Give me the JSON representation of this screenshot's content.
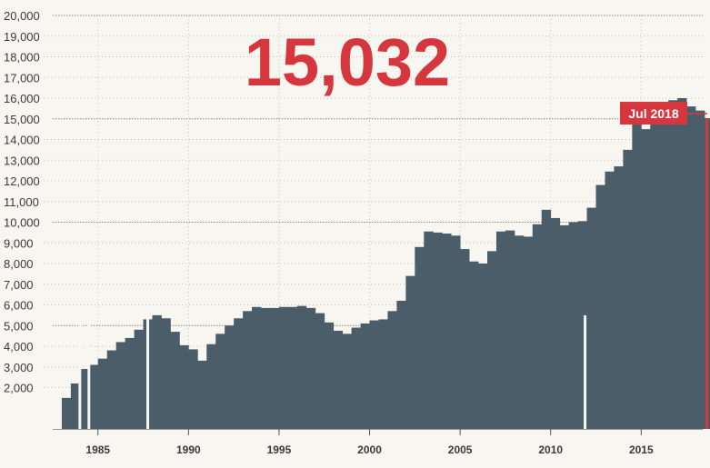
{
  "headline": "15,032",
  "colors": {
    "bar": "#4a5d69",
    "accent": "#d6373e",
    "grid": "#c8c2b8",
    "background": "#f8f6f1"
  },
  "chart_data": {
    "type": "bar",
    "title": "",
    "xlabel": "",
    "ylabel": "",
    "ylim": [
      0,
      20000
    ],
    "xlim": [
      1982,
      2018.7
    ],
    "y_ticks": [
      "2,000",
      "3,000",
      "4,000",
      "5,000",
      "6,000",
      "7,000",
      "8,000",
      "9,000",
      "10,000",
      "11,000",
      "12,000",
      "13,000",
      "14,000",
      "15,000",
      "16,000",
      "17,000",
      "18,000",
      "19,000",
      "20,000"
    ],
    "x_ticks": [
      "1985",
      "1990",
      "1995",
      "2000",
      "2005",
      "2010",
      "2015"
    ],
    "highlighted_gridlines": [
      5000,
      10000,
      15000,
      20000
    ],
    "annotation": {
      "label": "Jul 2018",
      "x": 2018.5,
      "value": 15032
    },
    "series": [
      {
        "points": [
          [
            1983.0,
            1500
          ],
          [
            1983.5,
            2200
          ],
          [
            1984.0,
            2900
          ],
          [
            1984.5,
            3100
          ],
          [
            1985.0,
            3400
          ],
          [
            1985.5,
            3800
          ],
          [
            1986.0,
            4200
          ],
          [
            1986.5,
            4400
          ],
          [
            1987.0,
            4800
          ],
          [
            1987.5,
            5300
          ],
          [
            1988.0,
            5500
          ],
          [
            1988.5,
            5350
          ],
          [
            1989.0,
            4700
          ],
          [
            1989.5,
            4050
          ],
          [
            1990.0,
            3850
          ],
          [
            1990.5,
            3300
          ],
          [
            1991.0,
            4100
          ],
          [
            1991.5,
            4600
          ],
          [
            1992.0,
            5000
          ],
          [
            1992.5,
            5350
          ],
          [
            1993.0,
            5700
          ],
          [
            1993.5,
            5900
          ],
          [
            1994.0,
            5850
          ],
          [
            1994.5,
            5850
          ],
          [
            1995.0,
            5900
          ],
          [
            1995.5,
            5900
          ],
          [
            1996.0,
            5950
          ],
          [
            1996.5,
            5850
          ],
          [
            1997.0,
            5600
          ],
          [
            1997.5,
            5150
          ],
          [
            1998.0,
            4750
          ],
          [
            1998.5,
            4600
          ],
          [
            1999.0,
            4900
          ],
          [
            1999.5,
            5100
          ],
          [
            2000.0,
            5250
          ],
          [
            2000.5,
            5300
          ],
          [
            2001.0,
            5700
          ],
          [
            2001.5,
            6200
          ],
          [
            2002.0,
            7400
          ],
          [
            2002.5,
            8800
          ],
          [
            2003.0,
            9550
          ],
          [
            2003.5,
            9500
          ],
          [
            2004.0,
            9450
          ],
          [
            2004.5,
            9350
          ],
          [
            2005.0,
            8700
          ],
          [
            2005.5,
            8100
          ],
          [
            2006.0,
            8000
          ],
          [
            2006.5,
            8600
          ],
          [
            2007.0,
            9550
          ],
          [
            2007.5,
            9600
          ],
          [
            2008.0,
            9350
          ],
          [
            2008.5,
            9300
          ],
          [
            2009.0,
            9900
          ],
          [
            2009.5,
            10600
          ],
          [
            2010.0,
            10200
          ],
          [
            2010.5,
            9850
          ],
          [
            2011.0,
            10000
          ],
          [
            2011.5,
            10050
          ],
          [
            2012.0,
            10700
          ],
          [
            2012.5,
            11800
          ],
          [
            2013.0,
            12450
          ],
          [
            2013.5,
            12700
          ],
          [
            2014.0,
            13500
          ],
          [
            2014.5,
            14900
          ],
          [
            2015.0,
            14500
          ],
          [
            2015.5,
            14800
          ],
          [
            2016.0,
            15600
          ],
          [
            2016.5,
            15900
          ],
          [
            2017.0,
            16000
          ],
          [
            2017.5,
            15600
          ],
          [
            2018.0,
            15400
          ],
          [
            2018.5,
            15032
          ]
        ]
      }
    ]
  }
}
